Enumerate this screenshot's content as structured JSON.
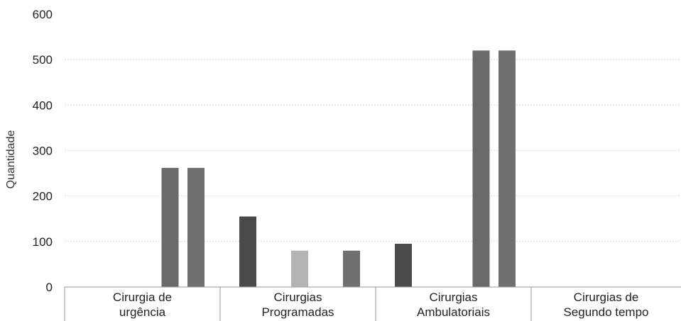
{
  "chart_data": {
    "type": "bar",
    "title": "",
    "xlabel": "",
    "ylabel": "Quantidade",
    "ylim": [
      0,
      600
    ],
    "yticks": [
      "0",
      "100",
      "200",
      "300",
      "400",
      "500",
      "600"
    ],
    "grid": true,
    "categories": [
      {
        "line1": "Cirurgia de",
        "line2": "urgência"
      },
      {
        "line1": "Cirurgias",
        "line2": "Programadas"
      },
      {
        "line1": "Cirurgias",
        "line2": "Ambulatoriais"
      },
      {
        "line1": "Cirurgias de",
        "line2": "Segundo tempo"
      }
    ],
    "series": [
      {
        "values": [
          0,
          155,
          95,
          0
        ],
        "color": "#4a4a4a"
      },
      {
        "values": [
          0,
          0,
          0,
          0
        ],
        "color": "#777777"
      },
      {
        "values": [
          0,
          80,
          0,
          0
        ],
        "color": "#b4b4b4"
      },
      {
        "values": [
          262,
          0,
          520,
          0
        ],
        "color": "#6a6a6a"
      },
      {
        "values": [
          262,
          80,
          520,
          0
        ],
        "color": "#6f6f6f"
      }
    ]
  }
}
